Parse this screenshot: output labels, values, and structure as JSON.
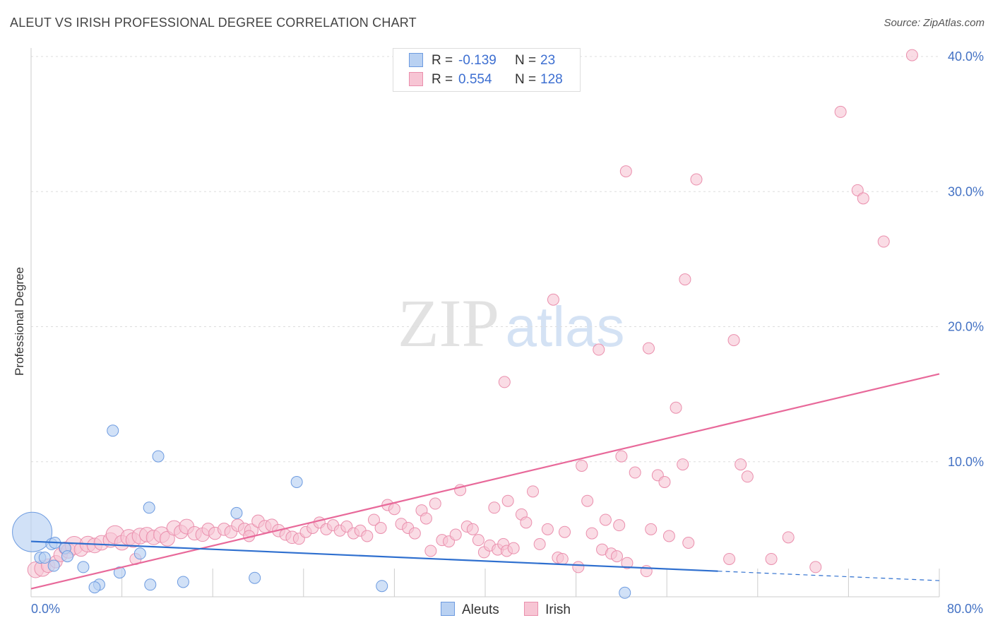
{
  "header": {
    "title": "ALEUT VS IRISH PROFESSIONAL DEGREE CORRELATION CHART",
    "source": "Source: ZipAtlas.com"
  },
  "watermark": {
    "part1": "ZIP",
    "part2": "atlas"
  },
  "stats": {
    "aleut": {
      "r_label": "R =",
      "r_value": "-0.139",
      "n_label": "N =",
      "n_value": "23"
    },
    "irish": {
      "r_label": "R =",
      "r_value": "0.554",
      "n_label": "N =",
      "n_value": "128"
    }
  },
  "legend": {
    "aleut": "Aleuts",
    "irish": "Irish"
  },
  "colors": {
    "aleut_fill": "#b9d1f2",
    "aleut_stroke": "#6d9be0",
    "aleut_line": "#2e6fcf",
    "irish_fill": "#f7c5d4",
    "irish_stroke": "#ea8fad",
    "irish_line": "#e8699a",
    "tick_text": "#4472c4",
    "grid": "#dddddd"
  },
  "chart_data": {
    "type": "scatter",
    "title": "ALEUT VS IRISH PROFESSIONAL DEGREE CORRELATION CHART",
    "ylabel": "Professional Degree",
    "xlim": [
      0,
      80
    ],
    "ylim": [
      0,
      40
    ],
    "x_tick_labels": [
      "0.0%",
      "80.0%"
    ],
    "y_ticks": [
      {
        "value": 10,
        "label": "10.0%"
      },
      {
        "value": 20,
        "label": "20.0%"
      },
      {
        "value": 30,
        "label": "30.0%"
      },
      {
        "value": 40,
        "label": "40.0%"
      }
    ],
    "grid": true,
    "series": [
      {
        "name": "Aleuts",
        "points": [
          [
            0.1,
            4.8,
            3.5
          ],
          [
            0.8,
            2.9,
            1
          ],
          [
            1.2,
            2.9,
            1
          ],
          [
            1.8,
            3.9,
            1
          ],
          [
            2.0,
            2.3,
            1
          ],
          [
            2.1,
            4.0,
            1
          ],
          [
            3.0,
            3.6,
            1
          ],
          [
            4.6,
            2.2,
            1
          ],
          [
            6.0,
            0.9,
            1
          ],
          [
            5.6,
            0.7,
            1
          ],
          [
            7.2,
            12.3,
            1
          ],
          [
            7.8,
            1.8,
            1
          ],
          [
            9.6,
            3.2,
            1
          ],
          [
            10.4,
            6.6,
            1
          ],
          [
            10.5,
            0.9,
            1
          ],
          [
            11.2,
            10.4,
            1
          ],
          [
            13.4,
            1.1,
            1
          ],
          [
            18.1,
            6.2,
            1
          ],
          [
            19.7,
            1.4,
            1
          ],
          [
            23.4,
            8.5,
            1
          ],
          [
            30.9,
            0.8,
            1
          ],
          [
            52.3,
            0.3,
            1
          ],
          [
            3.2,
            3.0,
            1
          ]
        ],
        "trend": {
          "x": [
            0,
            60.5
          ],
          "y": [
            4.1,
            1.9
          ]
        },
        "trend_dashed": {
          "x": [
            60.5,
            80
          ],
          "y": [
            1.9,
            1.2
          ]
        }
      },
      {
        "name": "Irish",
        "points": [
          [
            0.4,
            2.0,
            1.4
          ],
          [
            1.0,
            2.1,
            1.4
          ],
          [
            1.5,
            2.3,
            1.2
          ],
          [
            2.2,
            2.6,
            1.1
          ],
          [
            2.6,
            3.1,
            1.2
          ],
          [
            3.0,
            3.6,
            1.1
          ],
          [
            3.3,
            3.4,
            1.3
          ],
          [
            3.8,
            3.8,
            1.6
          ],
          [
            4.4,
            3.5,
            1.2
          ],
          [
            5.0,
            3.9,
            1.4
          ],
          [
            5.6,
            3.8,
            1.3
          ],
          [
            6.2,
            4.0,
            1.3
          ],
          [
            7.0,
            4.2,
            1.3
          ],
          [
            7.4,
            4.6,
            1.6
          ],
          [
            8.0,
            4.0,
            1.3
          ],
          [
            8.6,
            4.4,
            1.4
          ],
          [
            9.0,
            4.2,
            1.3
          ],
          [
            9.6,
            4.5,
            1.4
          ],
          [
            10.2,
            4.6,
            1.3
          ],
          [
            10.8,
            4.4,
            1.3
          ],
          [
            11.5,
            4.6,
            1.4
          ],
          [
            12.0,
            4.3,
            1.3
          ],
          [
            12.6,
            5.1,
            1.3
          ],
          [
            13.2,
            4.8,
            1.2
          ],
          [
            13.7,
            5.2,
            1.3
          ],
          [
            14.4,
            4.7,
            1.2
          ],
          [
            15.1,
            4.6,
            1.2
          ],
          [
            15.6,
            5.0,
            1.1
          ],
          [
            16.2,
            4.7,
            1.1
          ],
          [
            17.0,
            5.0,
            1.1
          ],
          [
            17.6,
            4.8,
            1.1
          ],
          [
            18.2,
            5.3,
            1.1
          ],
          [
            18.8,
            5.0,
            1.1
          ],
          [
            19.4,
            4.9,
            1.2
          ],
          [
            20.0,
            5.6,
            1.1
          ],
          [
            20.6,
            5.2,
            1.1
          ],
          [
            21.2,
            5.3,
            1.1
          ],
          [
            21.8,
            4.9,
            1.1
          ],
          [
            22.4,
            4.6,
            1.0
          ],
          [
            23.0,
            4.4,
            1.1
          ],
          [
            23.6,
            4.3,
            1.0
          ],
          [
            24.2,
            4.8,
            1.0
          ],
          [
            24.8,
            5.1,
            1.0
          ],
          [
            25.4,
            5.5,
            1.0
          ],
          [
            26.0,
            5.0,
            1.0
          ],
          [
            26.6,
            5.3,
            1.0
          ],
          [
            27.2,
            4.9,
            1.0
          ],
          [
            27.8,
            5.2,
            1.0
          ],
          [
            28.4,
            4.7,
            1.0
          ],
          [
            29.0,
            4.9,
            1.0
          ],
          [
            29.6,
            4.5,
            1.0
          ],
          [
            30.2,
            5.7,
            1.0
          ],
          [
            30.8,
            5.1,
            1.0
          ],
          [
            31.4,
            6.8,
            1.0
          ],
          [
            32.0,
            6.5,
            1.0
          ],
          [
            32.6,
            5.4,
            1.0
          ],
          [
            33.2,
            5.1,
            1.0
          ],
          [
            33.8,
            4.7,
            1.0
          ],
          [
            34.4,
            6.4,
            1.0
          ],
          [
            34.8,
            5.8,
            1.0
          ],
          [
            35.2,
            3.4,
            1.0
          ],
          [
            35.6,
            6.9,
            1.0
          ],
          [
            36.2,
            4.2,
            1.0
          ],
          [
            36.8,
            4.1,
            1.0
          ],
          [
            37.4,
            4.6,
            1.0
          ],
          [
            37.8,
            7.9,
            1.0
          ],
          [
            38.4,
            5.2,
            1.0
          ],
          [
            38.9,
            5.0,
            1.0
          ],
          [
            39.4,
            4.2,
            1.0
          ],
          [
            39.9,
            3.3,
            1.0
          ],
          [
            40.4,
            3.8,
            1.0
          ],
          [
            40.8,
            6.6,
            1.0
          ],
          [
            41.1,
            3.5,
            1.0
          ],
          [
            41.6,
            3.9,
            1.0
          ],
          [
            41.9,
            3.4,
            1.0
          ],
          [
            42.5,
            3.6,
            1.0
          ],
          [
            42.0,
            7.1,
            1.0
          ],
          [
            43.2,
            6.1,
            1.0
          ],
          [
            43.6,
            5.5,
            1.0
          ],
          [
            44.2,
            7.8,
            1.0
          ],
          [
            44.8,
            3.9,
            1.0
          ],
          [
            45.5,
            5.0,
            1.0
          ],
          [
            46.4,
            2.9,
            1.0
          ],
          [
            46.8,
            2.8,
            1.0
          ],
          [
            47.0,
            4.8,
            1.0
          ],
          [
            48.2,
            2.2,
            1.0
          ],
          [
            49.0,
            7.1,
            1.0
          ],
          [
            49.4,
            4.7,
            1.0
          ],
          [
            50.3,
            3.5,
            1.0
          ],
          [
            50.6,
            5.7,
            1.0
          ],
          [
            51.1,
            3.2,
            1.0
          ],
          [
            51.8,
            5.3,
            1.0
          ],
          [
            51.6,
            3.0,
            1.0
          ],
          [
            52.5,
            2.5,
            1.0
          ],
          [
            53.2,
            9.2,
            1.0
          ],
          [
            54.2,
            1.9,
            1.0
          ],
          [
            54.6,
            5.0,
            1.0
          ],
          [
            55.2,
            9.0,
            1.0
          ],
          [
            55.8,
            8.5,
            1.0
          ],
          [
            56.2,
            4.5,
            1.0
          ],
          [
            56.8,
            14.0,
            1.0
          ],
          [
            57.4,
            9.8,
            1.0
          ],
          [
            57.9,
            4.0,
            1.0
          ],
          [
            61.5,
            2.8,
            1.0
          ],
          [
            62.5,
            9.8,
            1.0
          ],
          [
            63.1,
            8.9,
            1.0
          ],
          [
            65.2,
            2.8,
            1.0
          ],
          [
            66.7,
            4.4,
            1.0
          ],
          [
            69.1,
            2.2,
            1.0
          ],
          [
            41.7,
            15.9,
            1.0
          ],
          [
            46.0,
            22.0,
            1.0
          ],
          [
            48.5,
            9.7,
            1.0
          ],
          [
            50.0,
            18.3,
            1.0
          ],
          [
            52.0,
            10.4,
            1.0
          ],
          [
            52.4,
            31.5,
            1.0
          ],
          [
            54.4,
            18.4,
            1.0
          ],
          [
            57.6,
            23.5,
            1.0
          ],
          [
            58.6,
            30.9,
            1.0
          ],
          [
            61.9,
            19.0,
            1.0
          ],
          [
            71.3,
            35.9,
            1.0
          ],
          [
            72.8,
            30.1,
            1.0
          ],
          [
            73.3,
            29.5,
            1.0
          ],
          [
            75.1,
            26.3,
            1.0
          ],
          [
            77.6,
            40.1,
            1.0
          ],
          [
            9.2,
            2.8,
            1.0
          ],
          [
            19.2,
            4.5,
            1.0
          ]
        ],
        "trend": {
          "x": [
            0,
            80
          ],
          "y": [
            0.6,
            16.5
          ]
        }
      }
    ]
  }
}
